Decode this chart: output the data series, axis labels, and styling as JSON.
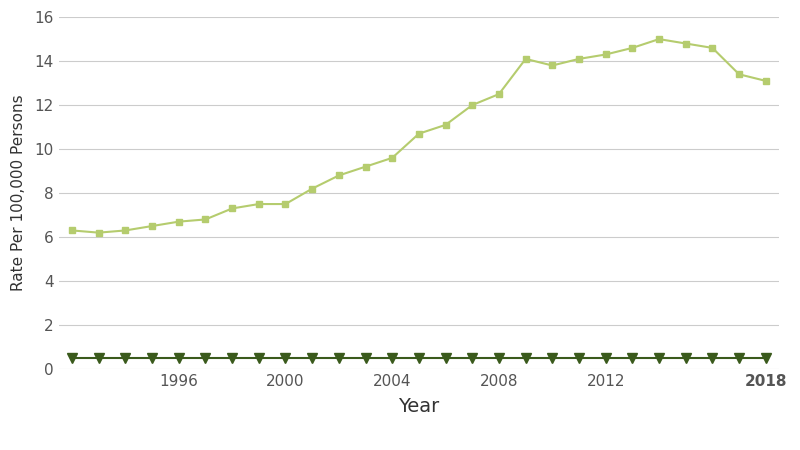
{
  "years": [
    1992,
    1993,
    1994,
    1995,
    1996,
    1997,
    1998,
    1999,
    2000,
    2001,
    2002,
    2003,
    2004,
    2005,
    2006,
    2007,
    2008,
    2009,
    2010,
    2011,
    2012,
    2013,
    2014,
    2015,
    2016,
    2017,
    2018
  ],
  "new_cases": [
    6.3,
    6.2,
    6.3,
    6.5,
    6.7,
    6.8,
    7.3,
    7.5,
    7.5,
    8.2,
    8.8,
    9.2,
    9.6,
    10.7,
    11.1,
    12.0,
    12.5,
    14.1,
    13.8,
    14.1,
    14.3,
    14.6,
    15.0,
    14.8,
    14.6,
    13.4,
    13.1
  ],
  "death_rate": [
    0.5,
    0.5,
    0.5,
    0.5,
    0.5,
    0.5,
    0.5,
    0.5,
    0.5,
    0.5,
    0.5,
    0.5,
    0.5,
    0.5,
    0.5,
    0.5,
    0.5,
    0.5,
    0.5,
    0.5,
    0.5,
    0.5,
    0.5,
    0.5,
    0.5,
    0.5,
    0.5
  ],
  "new_cases_color": "#b5cc6e",
  "death_rate_color": "#3a5a1c",
  "background_color": "#ffffff",
  "grid_color": "#cccccc",
  "ylabel": "Rate Per 100,000 Persons",
  "xlabel": "Year",
  "ylim": [
    0,
    16
  ],
  "xlim": [
    1991.5,
    2018.5
  ],
  "yticks": [
    0,
    2,
    4,
    6,
    8,
    10,
    12,
    14,
    16
  ],
  "xticks": [
    1996,
    2000,
    2004,
    2008,
    2012,
    2018
  ],
  "ylabel_fontsize": 11,
  "xlabel_fontsize": 14,
  "tick_fontsize": 11,
  "legend_fontsize": 11
}
